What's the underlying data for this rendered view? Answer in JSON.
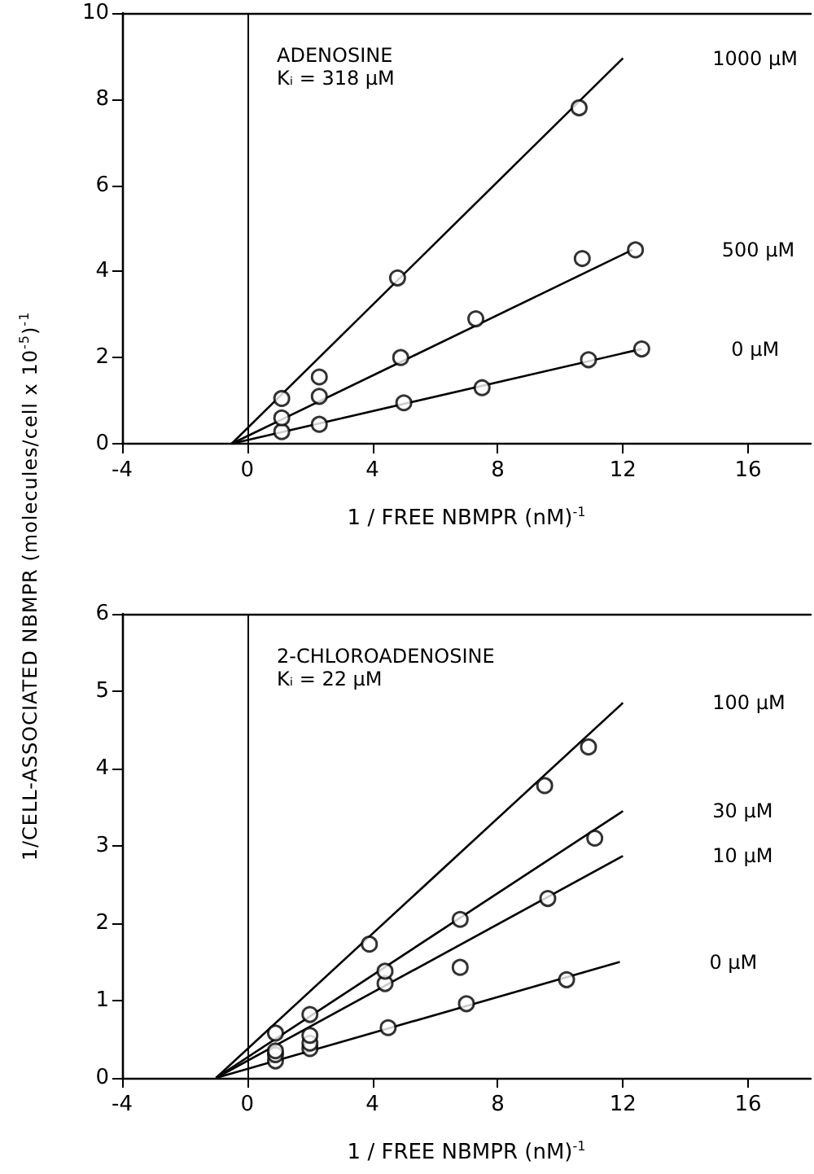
{
  "chart_data": [
    {
      "type": "scatter",
      "ylabel": "1/CELL-ASSOCIATED NBMPR (molecules/cell x 10$^{-5}$)$^{-1}$",
      "xlabel": "1 / FREE NBMPR (nM)$^{-1}$",
      "annotations": [
        "ADENOSINE",
        "Kᵢ = 318 μM"
      ],
      "xlim": [
        -4,
        18
      ],
      "xticks": [
        -4,
        0,
        4,
        8,
        12,
        16
      ],
      "ylim": [
        0,
        10
      ],
      "yticks": [
        0,
        2,
        4,
        6,
        8,
        10
      ],
      "ref_lines": [
        {
          "axis": "x",
          "value": 0,
          "color": "#000000"
        }
      ],
      "series": [
        {
          "marker": "circle",
          "color": "#000000",
          "x": [
            1.1,
            2.3,
            5.0,
            7.5,
            10.9,
            12.6
          ],
          "values": [
            0.28,
            0.45,
            0.95,
            1.3,
            1.95,
            2.2
          ]
        },
        {
          "marker": "circle",
          "color": "#000000",
          "x": [
            1.1,
            2.3,
            4.9,
            7.3,
            10.7,
            12.4
          ],
          "values": [
            0.6,
            1.1,
            2.0,
            2.9,
            4.3,
            4.5
          ]
        },
        {
          "marker": "circle",
          "color": "#000000",
          "x": [
            1.1,
            2.3,
            4.8,
            10.6
          ],
          "values": [
            1.05,
            1.55,
            3.85,
            7.8
          ]
        },
        {
          "type": "line",
          "marker": "none",
          "name": "0 μM",
          "color": "#000000",
          "x": [
            -0.5,
            12.6
          ],
          "values": [
            0,
            2.2
          ]
        },
        {
          "type": "line",
          "marker": "none",
          "name": "500 μM",
          "color": "#000000",
          "x": [
            -0.5,
            12.3
          ],
          "values": [
            0,
            4.5
          ]
        },
        {
          "type": "line",
          "marker": "none",
          "name": "1000 μM",
          "color": "#000000",
          "x": [
            -0.5,
            12.0
          ],
          "values": [
            0,
            8.95
          ]
        }
      ]
    },
    {
      "type": "scatter",
      "xlabel": "1 / FREE NBMPR (nM)$^{-1}$",
      "annotations": [
        "2-CHLOROADENOSINE",
        "Kᵢ = 22 μM"
      ],
      "xlim": [
        -4,
        18
      ],
      "xticks": [
        -4,
        0,
        4,
        8,
        12,
        16
      ],
      "ylim": [
        0,
        6
      ],
      "yticks": [
        0,
        1,
        2,
        3,
        4,
        5,
        6
      ],
      "ref_lines": [
        {
          "axis": "x",
          "value": 0,
          "color": "#000000"
        }
      ],
      "series": [
        {
          "marker": "circle",
          "color": "#000000",
          "x": [
            0.9,
            2.0,
            4.5,
            7.0,
            10.2
          ],
          "values": [
            0.22,
            0.38,
            0.65,
            0.96,
            1.27
          ]
        },
        {
          "marker": "circle",
          "color": "#000000",
          "x": [
            0.9,
            2.0,
            4.4,
            6.8,
            9.6
          ],
          "values": [
            0.3,
            0.45,
            1.22,
            1.43,
            2.32
          ]
        },
        {
          "marker": "circle",
          "color": "#000000",
          "x": [
            0.9,
            2.0,
            4.4,
            6.8,
            11.1
          ],
          "values": [
            0.35,
            0.55,
            1.38,
            2.05,
            3.1
          ]
        },
        {
          "marker": "circle",
          "color": "#000000",
          "x": [
            0.9,
            2.0,
            3.9,
            9.5,
            10.9
          ],
          "values": [
            0.58,
            0.82,
            1.73,
            3.78,
            4.28
          ]
        },
        {
          "type": "line",
          "marker": "none",
          "name": "0 μM",
          "color": "#000000",
          "x": [
            -1.0,
            11.9
          ],
          "values": [
            0,
            1.5
          ]
        },
        {
          "type": "line",
          "marker": "none",
          "name": "10 μM",
          "color": "#000000",
          "x": [
            -1.0,
            12.0
          ],
          "values": [
            0,
            2.87
          ]
        },
        {
          "type": "line",
          "marker": "none",
          "name": "30 μM",
          "color": "#000000",
          "x": [
            -1.0,
            12.0
          ],
          "values": [
            0,
            3.45
          ]
        },
        {
          "type": "line",
          "marker": "none",
          "name": "100 μM",
          "color": "#000000",
          "x": [
            -1.0,
            12.0
          ],
          "values": [
            0,
            4.85
          ]
        }
      ]
    }
  ]
}
